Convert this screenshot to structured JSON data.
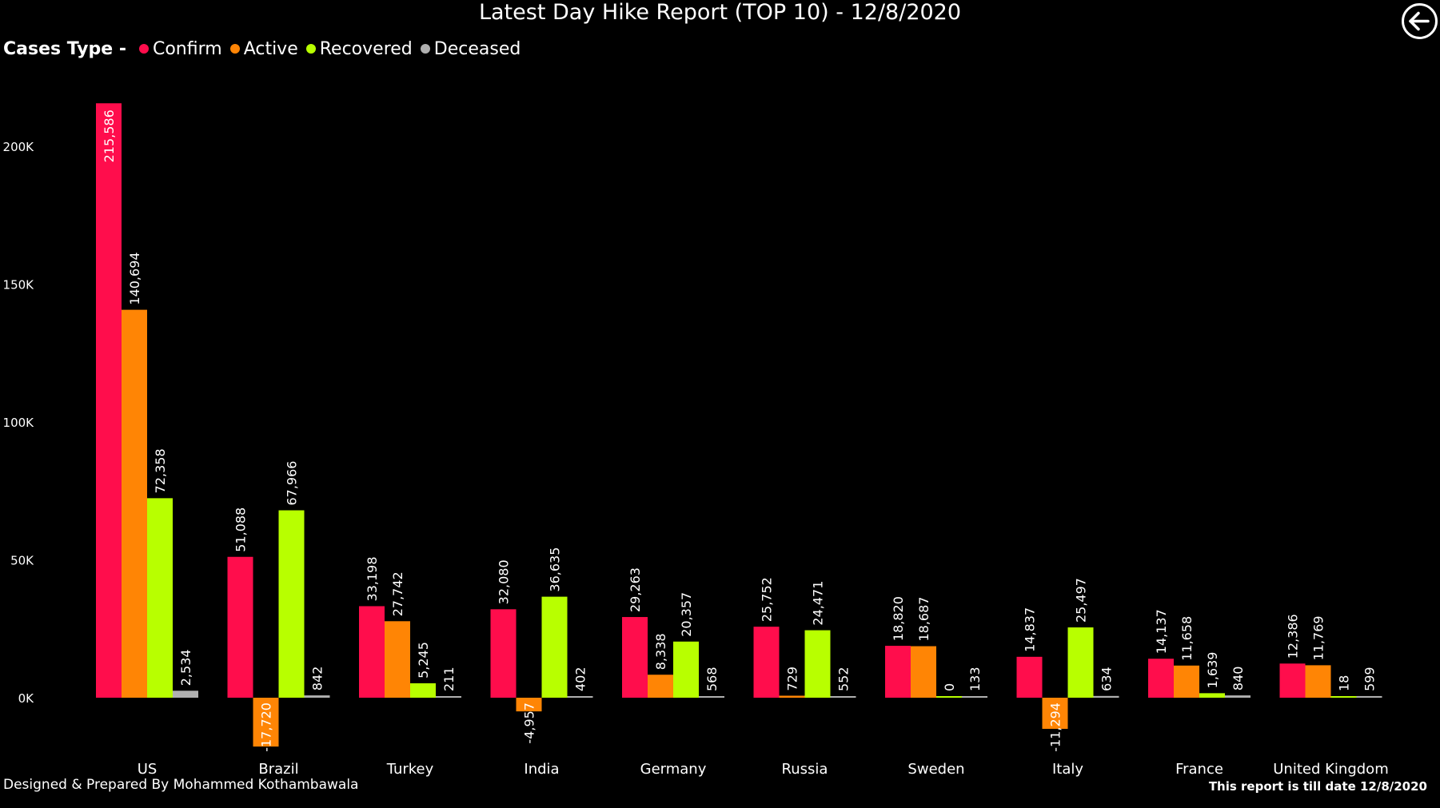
{
  "header": {
    "title": "Latest Day Hike Report (TOP 10) - 12/8/2020",
    "back_icon": "back-arrow-icon"
  },
  "legend": {
    "title": "Cases Type -",
    "items": [
      {
        "label": "Confirm",
        "color": "#FF0D4C"
      },
      {
        "label": "Active",
        "color": "#FF8505"
      },
      {
        "label": "Recovered",
        "color": "#B8FF00"
      },
      {
        "label": "Deceased",
        "color": "#B0B0B0"
      }
    ]
  },
  "chart_data": {
    "type": "bar",
    "categories": [
      "US",
      "Brazil",
      "Turkey",
      "India",
      "Germany",
      "Russia",
      "Sweden",
      "Italy",
      "France",
      "United Kingdom"
    ],
    "series": [
      {
        "name": "Confirm",
        "color": "#FF0D4C",
        "values": [
          215586,
          51088,
          33198,
          32080,
          29263,
          25752,
          18820,
          14837,
          14137,
          12386
        ],
        "labels": [
          "215,586",
          "51,088",
          "33,198",
          "32,080",
          "29,263",
          "25,752",
          "18,820",
          "14,837",
          "14,137",
          "12,386"
        ]
      },
      {
        "name": "Active",
        "color": "#FF8505",
        "values": [
          140694,
          -17720,
          27742,
          -4957,
          8338,
          729,
          18687,
          -11294,
          11658,
          11769
        ],
        "labels": [
          "140,694",
          "-17,720",
          "27,742",
          "-4,957",
          "8,338",
          "729",
          "18,687",
          "-11,294",
          "11,658",
          "11,769"
        ]
      },
      {
        "name": "Recovered",
        "color": "#B8FF00",
        "values": [
          72358,
          67966,
          5245,
          36635,
          20357,
          24471,
          0,
          25497,
          1639,
          18
        ],
        "labels": [
          "72,358",
          "67,966",
          "5,245",
          "36,635",
          "20,357",
          "24,471",
          "0",
          "25,497",
          "1,639",
          "18"
        ]
      },
      {
        "name": "Deceased",
        "color": "#B0B0B0",
        "values": [
          2534,
          842,
          211,
          402,
          568,
          552,
          133,
          634,
          840,
          599
        ],
        "labels": [
          "2,534",
          "842",
          "211",
          "402",
          "568",
          "552",
          "133",
          "634",
          "840",
          "599"
        ]
      }
    ],
    "yticks": [
      0,
      50000,
      100000,
      150000,
      200000
    ],
    "ytick_labels": [
      "0K",
      "50K",
      "100K",
      "150K",
      "200K"
    ],
    "ylim": [
      -17720,
      215586
    ],
    "grid": false,
    "legend_position": "top-left"
  },
  "footer": {
    "credit": "Designed & Prepared By Mohammed Kothambawala",
    "note": "This report is till date 12/8/2020"
  }
}
